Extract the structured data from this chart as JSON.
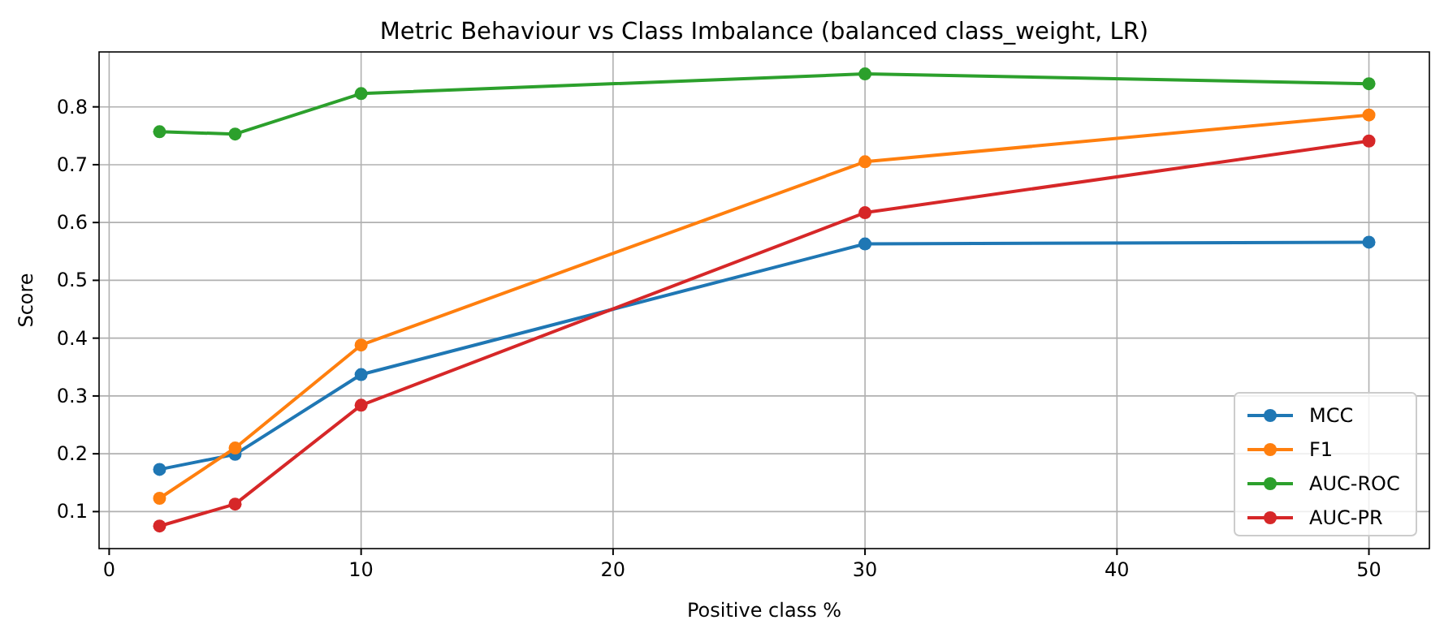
{
  "chart_data": {
    "type": "line",
    "title": "Metric Behaviour vs Class Imbalance (balanced class_weight, LR)",
    "xlabel": "Positive class %",
    "ylabel": "Score",
    "x": [
      2,
      5,
      10,
      30,
      50
    ],
    "series": [
      {
        "name": "MCC",
        "color": "#1f77b4",
        "values": [
          0.173,
          0.199,
          0.337,
          0.563,
          0.566
        ]
      },
      {
        "name": "F1",
        "color": "#ff7f0e",
        "values": [
          0.123,
          0.21,
          0.388,
          0.705,
          0.786
        ]
      },
      {
        "name": "AUC-ROC",
        "color": "#2ca02c",
        "values": [
          0.757,
          0.753,
          0.823,
          0.857,
          0.84
        ]
      },
      {
        "name": "AUC-PR",
        "color": "#d62728",
        "values": [
          0.075,
          0.113,
          0.284,
          0.617,
          0.741
        ]
      }
    ],
    "xlim": [
      -0.4,
      52.4
    ],
    "ylim": [
      0.036,
      0.895
    ],
    "xticks": [
      0,
      10,
      20,
      30,
      40,
      50
    ],
    "yticks": [
      0.1,
      0.2,
      0.3,
      0.4,
      0.5,
      0.6,
      0.7,
      0.8
    ],
    "grid": true,
    "legend": "bottom right",
    "marker": "circle",
    "line_style": "solid"
  }
}
